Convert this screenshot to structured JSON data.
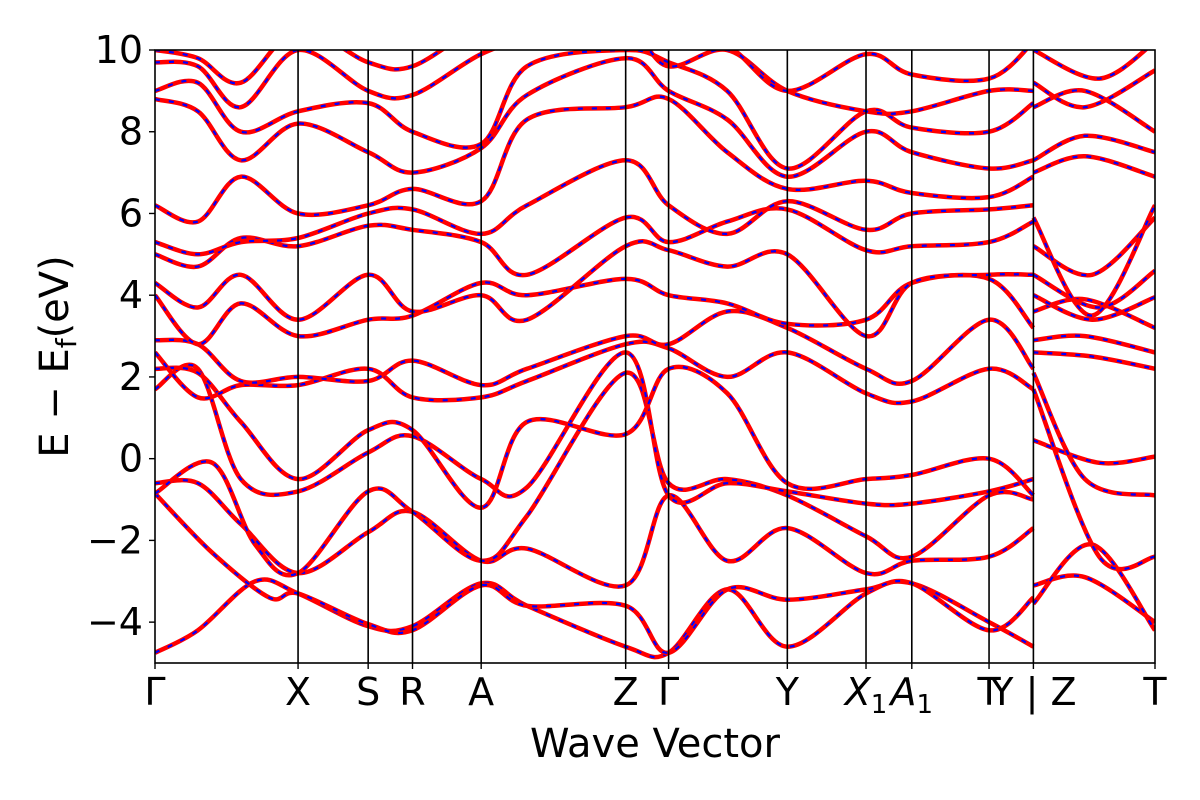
{
  "chart_data": {
    "type": "line",
    "title": "",
    "xlabel": "Wave Vector",
    "ylabel": "E − E",
    "ylabel_subscript": "f",
    "ylabel_unit": "(eV)",
    "ylim": [
      -5,
      10
    ],
    "yticks": [
      -4,
      -2,
      0,
      2,
      4,
      6,
      8,
      10
    ],
    "ytick_labels": [
      "−4",
      "−2",
      "0",
      "2",
      "4",
      "6",
      "8",
      "10"
    ],
    "kpath": [
      {
        "label": "Γ",
        "x": 0.0
      },
      {
        "label": "X",
        "x": 1.0
      },
      {
        "label": "S",
        "x": 1.49
      },
      {
        "label": "R",
        "x": 1.8
      },
      {
        "label": "A",
        "x": 2.28
      },
      {
        "label": "Z",
        "x": 3.29
      },
      {
        "label": "Γ",
        "x": 3.59
      },
      {
        "label": "Y",
        "x": 4.42
      },
      {
        "label": "X1",
        "x": 4.97
      },
      {
        "label": "A1",
        "x": 5.29
      },
      {
        "label": "T",
        "x": 5.83
      },
      {
        "label": "Y | Z",
        "x": 6.14
      },
      {
        "label": "T",
        "x": 6.99
      }
    ],
    "grid": false,
    "series": [
      {
        "color": "#ff0000",
        "style": "solid",
        "values": []
      },
      {
        "color": "#0000ff",
        "style": "dashed",
        "values": []
      }
    ],
    "bands": [
      [
        [
          0,
          -4.75
        ],
        [
          0.3,
          -4.2
        ],
        [
          0.7,
          -3.0
        ],
        [
          1.0,
          -3.3
        ],
        [
          1.49,
          -4.1
        ],
        [
          1.8,
          -4.1
        ],
        [
          2.28,
          -3.05
        ],
        [
          2.6,
          -3.6
        ],
        [
          3.29,
          -4.6
        ],
        [
          3.59,
          -4.75
        ],
        [
          4.0,
          -3.2
        ],
        [
          4.42,
          -4.6
        ],
        [
          4.97,
          -3.3
        ],
        [
          5.29,
          -3.05
        ],
        [
          5.83,
          -4.0
        ],
        [
          6.14,
          -4.6
        ]
      ],
      [
        [
          0,
          -0.85
        ],
        [
          0.4,
          -2.3
        ],
        [
          0.8,
          -3.4
        ],
        [
          1.0,
          -3.3
        ],
        [
          1.49,
          -4.05
        ],
        [
          1.8,
          -4.2
        ],
        [
          2.28,
          -3.1
        ],
        [
          2.6,
          -3.6
        ],
        [
          3.29,
          -3.6
        ],
        [
          3.59,
          -4.75
        ],
        [
          4.0,
          -3.2
        ],
        [
          4.42,
          -3.45
        ],
        [
          4.97,
          -3.2
        ],
        [
          5.29,
          -3.05
        ],
        [
          5.83,
          -4.2
        ],
        [
          6.14,
          -3.4
        ]
      ],
      [
        [
          0,
          -0.6
        ],
        [
          0.3,
          -0.6
        ],
        [
          0.6,
          -1.6
        ],
        [
          1.0,
          -2.8
        ],
        [
          1.49,
          -1.8
        ],
        [
          1.8,
          -1.3
        ],
        [
          2.28,
          -2.5
        ],
        [
          2.6,
          -2.2
        ],
        [
          3.29,
          -3.1
        ],
        [
          3.59,
          -0.9
        ],
        [
          4.0,
          -2.5
        ],
        [
          4.42,
          -1.7
        ],
        [
          4.97,
          -2.8
        ],
        [
          5.29,
          -2.5
        ],
        [
          5.83,
          -2.4
        ],
        [
          6.14,
          -1.7
        ]
      ],
      [
        [
          0,
          -0.85
        ],
        [
          0.4,
          -0.1
        ],
        [
          0.7,
          -2.1
        ],
        [
          1.0,
          -2.8
        ],
        [
          1.49,
          -0.8
        ],
        [
          1.8,
          -1.3
        ],
        [
          2.28,
          -2.5
        ],
        [
          2.6,
          -1.4
        ],
        [
          3.29,
          2.1
        ],
        [
          3.59,
          -0.6
        ],
        [
          4.0,
          -0.5
        ],
        [
          4.42,
          -0.9
        ],
        [
          4.97,
          -1.9
        ],
        [
          5.29,
          -2.4
        ],
        [
          5.83,
          -0.9
        ],
        [
          6.14,
          -1.0
        ]
      ],
      [
        [
          0,
          1.7
        ],
        [
          0.3,
          2.2
        ],
        [
          0.6,
          -0.5
        ],
        [
          1.0,
          -0.8
        ],
        [
          1.49,
          0.15
        ],
        [
          1.8,
          0.55
        ],
        [
          2.28,
          -0.5
        ],
        [
          2.6,
          -0.7
        ],
        [
          3.29,
          2.6
        ],
        [
          3.59,
          -0.9
        ],
        [
          4.0,
          -0.6
        ],
        [
          4.42,
          -0.8
        ],
        [
          4.97,
          -1.1
        ],
        [
          5.29,
          -1.1
        ],
        [
          5.83,
          -0.8
        ],
        [
          6.14,
          -0.5
        ]
      ],
      [
        [
          0,
          2.2
        ],
        [
          0.3,
          2.1
        ],
        [
          0.6,
          0.9
        ],
        [
          1.0,
          -0.5
        ],
        [
          1.49,
          0.7
        ],
        [
          1.8,
          0.7
        ],
        [
          2.28,
          -1.2
        ],
        [
          2.6,
          0.9
        ],
        [
          3.29,
          0.6
        ],
        [
          3.59,
          2.2
        ],
        [
          4.0,
          1.6
        ],
        [
          4.42,
          -0.6
        ],
        [
          4.97,
          -0.5
        ],
        [
          5.29,
          -0.4
        ],
        [
          5.83,
          0.0
        ],
        [
          6.14,
          -0.9
        ]
      ],
      [
        [
          0,
          2.6
        ],
        [
          0.3,
          1.5
        ],
        [
          0.6,
          1.8
        ],
        [
          1.0,
          1.8
        ],
        [
          1.49,
          2.2
        ],
        [
          1.8,
          1.5
        ],
        [
          2.28,
          1.5
        ],
        [
          2.6,
          1.9
        ],
        [
          3.29,
          2.8
        ],
        [
          3.59,
          2.7
        ],
        [
          4.0,
          2.0
        ],
        [
          4.42,
          2.6
        ],
        [
          4.97,
          1.6
        ],
        [
          5.29,
          1.4
        ],
        [
          5.83,
          2.2
        ],
        [
          6.14,
          1.7
        ]
      ],
      [
        [
          0,
          2.9
        ],
        [
          0.3,
          2.8
        ],
        [
          0.6,
          1.9
        ],
        [
          1.0,
          2.0
        ],
        [
          1.49,
          1.9
        ],
        [
          1.8,
          2.4
        ],
        [
          2.28,
          1.8
        ],
        [
          2.6,
          2.2
        ],
        [
          3.29,
          3.0
        ],
        [
          3.59,
          2.8
        ],
        [
          4.0,
          3.6
        ],
        [
          4.42,
          3.2
        ],
        [
          4.97,
          2.2
        ],
        [
          5.29,
          1.9
        ],
        [
          5.83,
          3.4
        ],
        [
          6.14,
          2.2
        ]
      ],
      [
        [
          0,
          4.0
        ],
        [
          0.3,
          2.8
        ],
        [
          0.6,
          3.8
        ],
        [
          1.0,
          3.0
        ],
        [
          1.49,
          3.4
        ],
        [
          1.8,
          3.5
        ],
        [
          2.28,
          4.3
        ],
        [
          2.6,
          4.0
        ],
        [
          3.29,
          4.4
        ],
        [
          3.59,
          4.0
        ],
        [
          4.0,
          3.8
        ],
        [
          4.42,
          3.3
        ],
        [
          4.97,
          3.4
        ],
        [
          5.29,
          4.3
        ],
        [
          5.83,
          4.4
        ],
        [
          6.14,
          3.2
        ]
      ],
      [
        [
          0,
          4.3
        ],
        [
          0.3,
          3.7
        ],
        [
          0.6,
          4.5
        ],
        [
          1.0,
          3.4
        ],
        [
          1.49,
          4.5
        ],
        [
          1.8,
          3.6
        ],
        [
          2.28,
          4.0
        ],
        [
          2.6,
          3.4
        ],
        [
          3.29,
          5.2
        ],
        [
          3.59,
          5.1
        ],
        [
          4.0,
          4.7
        ],
        [
          4.42,
          5.0
        ],
        [
          4.97,
          3.0
        ],
        [
          5.29,
          4.3
        ],
        [
          5.83,
          4.5
        ],
        [
          6.14,
          4.5
        ]
      ],
      [
        [
          0,
          5.0
        ],
        [
          0.3,
          4.7
        ],
        [
          0.6,
          5.4
        ],
        [
          1.0,
          5.2
        ],
        [
          1.49,
          5.7
        ],
        [
          1.8,
          5.6
        ],
        [
          2.28,
          5.3
        ],
        [
          2.6,
          4.5
        ],
        [
          3.29,
          5.9
        ],
        [
          3.59,
          5.3
        ],
        [
          4.0,
          5.8
        ],
        [
          4.42,
          6.1
        ],
        [
          4.97,
          5.1
        ],
        [
          5.29,
          5.2
        ],
        [
          5.83,
          5.3
        ],
        [
          6.14,
          5.8
        ]
      ],
      [
        [
          0,
          5.3
        ],
        [
          0.3,
          5.0
        ],
        [
          0.6,
          5.3
        ],
        [
          1.0,
          5.4
        ],
        [
          1.49,
          6.0
        ],
        [
          1.8,
          6.1
        ],
        [
          2.28,
          5.5
        ],
        [
          2.6,
          6.2
        ],
        [
          3.29,
          7.3
        ],
        [
          3.59,
          6.2
        ],
        [
          4.0,
          5.5
        ],
        [
          4.42,
          6.3
        ],
        [
          4.97,
          5.6
        ],
        [
          5.29,
          6.0
        ],
        [
          5.83,
          6.1
        ],
        [
          6.14,
          6.2
        ]
      ],
      [
        [
          0,
          6.2
        ],
        [
          0.3,
          5.8
        ],
        [
          0.6,
          6.9
        ],
        [
          1.0,
          6.0
        ],
        [
          1.49,
          6.2
        ],
        [
          1.8,
          6.6
        ],
        [
          2.28,
          6.3
        ],
        [
          2.6,
          8.3
        ],
        [
          3.29,
          8.6
        ],
        [
          3.59,
          8.8
        ],
        [
          4.0,
          7.5
        ],
        [
          4.42,
          6.6
        ],
        [
          4.97,
          6.8
        ],
        [
          5.29,
          6.5
        ],
        [
          5.83,
          6.4
        ],
        [
          6.14,
          6.9
        ]
      ],
      [
        [
          0,
          8.8
        ],
        [
          0.3,
          8.5
        ],
        [
          0.6,
          7.3
        ],
        [
          1.0,
          8.2
        ],
        [
          1.49,
          7.5
        ],
        [
          1.8,
          7.0
        ],
        [
          2.28,
          7.6
        ],
        [
          2.6,
          8.9
        ],
        [
          3.29,
          9.8
        ],
        [
          3.59,
          9.0
        ],
        [
          4.0,
          8.3
        ],
        [
          4.42,
          6.9
        ],
        [
          4.97,
          8.0
        ],
        [
          5.29,
          7.5
        ],
        [
          5.83,
          7.1
        ],
        [
          6.14,
          7.3
        ]
      ],
      [
        [
          0,
          9.0
        ],
        [
          0.3,
          9.2
        ],
        [
          0.6,
          8.0
        ],
        [
          1.0,
          8.5
        ],
        [
          1.49,
          8.7
        ],
        [
          1.8,
          8.0
        ],
        [
          2.28,
          7.7
        ],
        [
          2.6,
          9.6
        ],
        [
          3.29,
          10.0
        ],
        [
          3.59,
          9.7
        ],
        [
          4.0,
          9.0
        ],
        [
          4.42,
          7.1
        ],
        [
          4.97,
          8.5
        ],
        [
          5.29,
          8.1
        ],
        [
          5.83,
          8.0
        ],
        [
          6.14,
          8.7
        ]
      ],
      [
        [
          0,
          9.7
        ],
        [
          0.3,
          9.6
        ],
        [
          0.6,
          8.6
        ],
        [
          1.0,
          10.0
        ],
        [
          1.49,
          9.0
        ],
        [
          1.8,
          8.9
        ],
        [
          2.28,
          9.9
        ],
        [
          2.6,
          10.2
        ],
        [
          3.29,
          10.4
        ],
        [
          3.59,
          9.6
        ],
        [
          4.0,
          10.0
        ],
        [
          4.42,
          9.0
        ],
        [
          4.97,
          8.5
        ],
        [
          5.29,
          8.5
        ],
        [
          5.83,
          9.0
        ],
        [
          6.14,
          9.0
        ]
      ],
      [
        [
          0,
          10.0
        ],
        [
          0.3,
          9.8
        ],
        [
          0.6,
          9.2
        ],
        [
          1.0,
          10.5
        ],
        [
          1.49,
          9.7
        ],
        [
          1.8,
          9.6
        ],
        [
          2.28,
          10.6
        ],
        [
          2.6,
          10.7
        ],
        [
          3.29,
          10.6
        ],
        [
          3.59,
          10.3
        ],
        [
          4.0,
          10.1
        ],
        [
          4.42,
          9.0
        ],
        [
          4.97,
          9.9
        ],
        [
          5.29,
          9.4
        ],
        [
          5.83,
          9.3
        ],
        [
          6.14,
          10.2
        ]
      ]
    ],
    "bands_right": [
      [
        [
          6.14,
          -3.1
        ],
        [
          6.5,
          -2.9
        ],
        [
          6.99,
          -4.0
        ]
      ],
      [
        [
          6.14,
          -3.55
        ],
        [
          6.55,
          -2.1
        ],
        [
          6.99,
          -4.2
        ]
      ],
      [
        [
          6.14,
          0.45
        ],
        [
          6.6,
          -0.1
        ],
        [
          6.99,
          0.05
        ]
      ],
      [
        [
          6.14,
          1.7
        ],
        [
          6.6,
          -2.4
        ],
        [
          6.99,
          -2.4
        ]
      ],
      [
        [
          6.14,
          2.1
        ],
        [
          6.5,
          -0.5
        ],
        [
          6.99,
          -0.9
        ]
      ],
      [
        [
          6.14,
          2.6
        ],
        [
          6.55,
          2.5
        ],
        [
          6.99,
          2.2
        ]
      ],
      [
        [
          6.14,
          2.9
        ],
        [
          6.5,
          3.0
        ],
        [
          6.99,
          2.6
        ]
      ],
      [
        [
          6.14,
          3.6
        ],
        [
          6.5,
          3.9
        ],
        [
          6.99,
          3.2
        ]
      ],
      [
        [
          6.14,
          4.0
        ],
        [
          6.55,
          3.4
        ],
        [
          6.99,
          3.95
        ]
      ],
      [
        [
          6.14,
          4.5
        ],
        [
          6.6,
          3.7
        ],
        [
          6.99,
          4.6
        ]
      ],
      [
        [
          6.14,
          5.2
        ],
        [
          6.55,
          4.5
        ],
        [
          6.99,
          5.9
        ]
      ],
      [
        [
          6.14,
          5.9
        ],
        [
          6.55,
          3.5
        ],
        [
          6.99,
          6.2
        ]
      ],
      [
        [
          6.14,
          7.0
        ],
        [
          6.5,
          7.4
        ],
        [
          6.99,
          6.9
        ]
      ],
      [
        [
          6.14,
          7.3
        ],
        [
          6.5,
          7.9
        ],
        [
          6.99,
          7.5
        ]
      ],
      [
        [
          6.14,
          8.6
        ],
        [
          6.5,
          9.0
        ],
        [
          6.99,
          8.0
        ]
      ],
      [
        [
          6.14,
          9.2
        ],
        [
          6.5,
          8.6
        ],
        [
          6.99,
          9.5
        ]
      ],
      [
        [
          6.14,
          10.0
        ],
        [
          6.6,
          9.3
        ],
        [
          6.99,
          10.2
        ]
      ]
    ]
  }
}
